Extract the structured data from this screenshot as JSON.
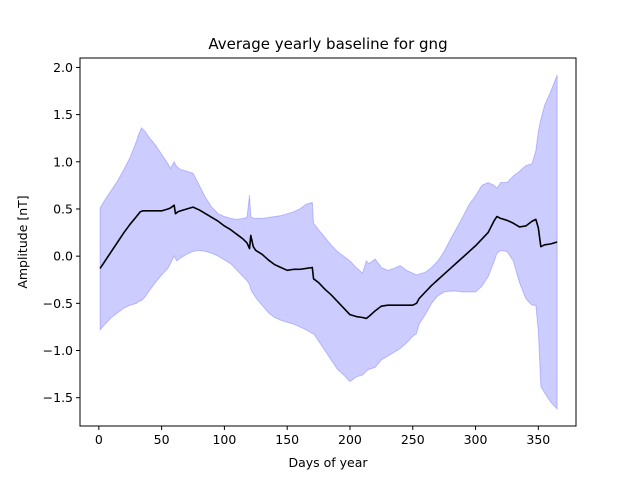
{
  "chart_data": {
    "type": "line",
    "title": "Average yearly baseline for gng",
    "xlabel": "Days of year",
    "ylabel": "Amplitude [nT]",
    "xlim": [
      -15,
      380
    ],
    "ylim": [
      -1.8,
      2.1
    ],
    "xticks": [
      0,
      50,
      100,
      150,
      200,
      250,
      300,
      350
    ],
    "yticks": [
      -1.5,
      -1.0,
      -0.5,
      0.0,
      0.5,
      1.0,
      1.5,
      2.0
    ],
    "xtick_labels": [
      "0",
      "50",
      "100",
      "150",
      "200",
      "250",
      "300",
      "350"
    ],
    "ytick_labels": [
      "−1.5",
      "−1.0",
      "−0.5",
      "0.0",
      "0.5",
      "1.0",
      "1.5",
      "2.0"
    ],
    "grid": false,
    "colors": {
      "line": "#000000",
      "band": "#0000ff",
      "band_opacity": 0.2
    },
    "series": [
      {
        "kind": "line",
        "x": [
          1,
          5,
          10,
          15,
          20,
          25,
          30,
          33,
          35,
          40,
          45,
          50,
          55,
          57,
          60,
          61,
          63,
          65,
          70,
          75,
          80,
          85,
          90,
          95,
          100,
          105,
          110,
          115,
          118,
          120,
          121,
          123,
          125,
          130,
          135,
          140,
          145,
          150,
          155,
          160,
          165,
          170,
          171,
          175,
          180,
          185,
          190,
          195,
          200,
          205,
          210,
          213,
          215,
          220,
          225,
          230,
          235,
          240,
          245,
          250,
          253,
          255,
          260,
          265,
          270,
          275,
          280,
          285,
          290,
          295,
          300,
          305,
          310,
          315,
          317,
          320,
          325,
          330,
          335,
          340,
          345,
          348,
          350,
          352,
          355,
          360,
          365
        ],
        "y": [
          -0.13,
          -0.05,
          0.05,
          0.15,
          0.25,
          0.34,
          0.42,
          0.47,
          0.48,
          0.48,
          0.48,
          0.48,
          0.5,
          0.51,
          0.54,
          0.45,
          0.47,
          0.48,
          0.5,
          0.52,
          0.49,
          0.45,
          0.41,
          0.37,
          0.32,
          0.28,
          0.23,
          0.18,
          0.14,
          0.08,
          0.22,
          0.1,
          0.06,
          0.02,
          -0.04,
          -0.09,
          -0.12,
          -0.15,
          -0.14,
          -0.14,
          -0.13,
          -0.12,
          -0.24,
          -0.28,
          -0.35,
          -0.41,
          -0.48,
          -0.55,
          -0.62,
          -0.64,
          -0.65,
          -0.66,
          -0.64,
          -0.58,
          -0.53,
          -0.52,
          -0.52,
          -0.52,
          -0.52,
          -0.52,
          -0.5,
          -0.45,
          -0.38,
          -0.31,
          -0.25,
          -0.19,
          -0.13,
          -0.07,
          -0.01,
          0.05,
          0.11,
          0.18,
          0.25,
          0.38,
          0.42,
          0.4,
          0.38,
          0.35,
          0.31,
          0.32,
          0.37,
          0.39,
          0.3,
          0.1,
          0.12,
          0.13,
          0.15
        ]
      },
      {
        "kind": "band",
        "x": [
          1,
          5,
          10,
          15,
          20,
          25,
          30,
          32,
          34,
          37,
          40,
          45,
          50,
          55,
          57,
          60,
          62,
          65,
          70,
          75,
          80,
          85,
          90,
          95,
          100,
          105,
          110,
          115,
          118,
          120,
          121,
          122,
          124,
          126,
          130,
          135,
          140,
          145,
          150,
          155,
          160,
          165,
          170,
          171,
          175,
          180,
          185,
          190,
          195,
          200,
          205,
          210,
          213,
          215,
          220,
          225,
          230,
          235,
          240,
          245,
          250,
          253,
          255,
          260,
          265,
          270,
          275,
          280,
          285,
          290,
          295,
          300,
          305,
          310,
          315,
          317,
          320,
          325,
          330,
          335,
          340,
          345,
          348,
          350,
          352,
          355,
          360,
          365
        ],
        "upper": [
          0.51,
          0.6,
          0.7,
          0.8,
          0.92,
          1.05,
          1.22,
          1.3,
          1.36,
          1.32,
          1.26,
          1.18,
          1.08,
          0.98,
          0.93,
          1.0,
          0.95,
          0.92,
          0.9,
          0.88,
          0.75,
          0.62,
          0.52,
          0.45,
          0.42,
          0.4,
          0.39,
          0.4,
          0.41,
          0.65,
          0.42,
          0.41,
          0.4,
          0.4,
          0.4,
          0.41,
          0.42,
          0.43,
          0.45,
          0.47,
          0.5,
          0.55,
          0.57,
          0.35,
          0.28,
          0.2,
          0.12,
          0.05,
          0.0,
          -0.05,
          -0.12,
          -0.18,
          -0.05,
          -0.08,
          -0.03,
          -0.12,
          -0.15,
          -0.13,
          -0.1,
          -0.15,
          -0.18,
          -0.2,
          -0.19,
          -0.17,
          -0.12,
          -0.05,
          0.05,
          0.18,
          0.3,
          0.42,
          0.55,
          0.64,
          0.75,
          0.78,
          0.75,
          0.72,
          0.78,
          0.78,
          0.85,
          0.9,
          0.96,
          0.98,
          1.12,
          1.32,
          1.45,
          1.6,
          1.75,
          1.92
        ],
        "lower": [
          -0.78,
          -0.72,
          -0.65,
          -0.6,
          -0.55,
          -0.52,
          -0.5,
          -0.48,
          -0.47,
          -0.43,
          -0.37,
          -0.28,
          -0.2,
          -0.13,
          -0.08,
          0.0,
          -0.05,
          -0.02,
          0.02,
          0.05,
          0.06,
          0.05,
          0.03,
          0.0,
          -0.04,
          -0.08,
          -0.15,
          -0.22,
          -0.26,
          -0.3,
          -0.35,
          -0.38,
          -0.42,
          -0.46,
          -0.52,
          -0.6,
          -0.65,
          -0.68,
          -0.7,
          -0.72,
          -0.75,
          -0.78,
          -0.82,
          -0.82,
          -0.9,
          -1.0,
          -1.1,
          -1.2,
          -1.26,
          -1.33,
          -1.28,
          -1.26,
          -1.22,
          -1.2,
          -1.18,
          -1.1,
          -1.06,
          -1.02,
          -0.98,
          -0.92,
          -0.85,
          -0.82,
          -0.72,
          -0.62,
          -0.5,
          -0.42,
          -0.38,
          -0.37,
          -0.37,
          -0.38,
          -0.38,
          -0.38,
          -0.32,
          -0.22,
          -0.05,
          0.03,
          0.06,
          0.05,
          -0.05,
          -0.28,
          -0.45,
          -0.52,
          -0.52,
          -0.8,
          -1.38,
          -1.45,
          -1.55,
          -1.62
        ]
      }
    ]
  }
}
